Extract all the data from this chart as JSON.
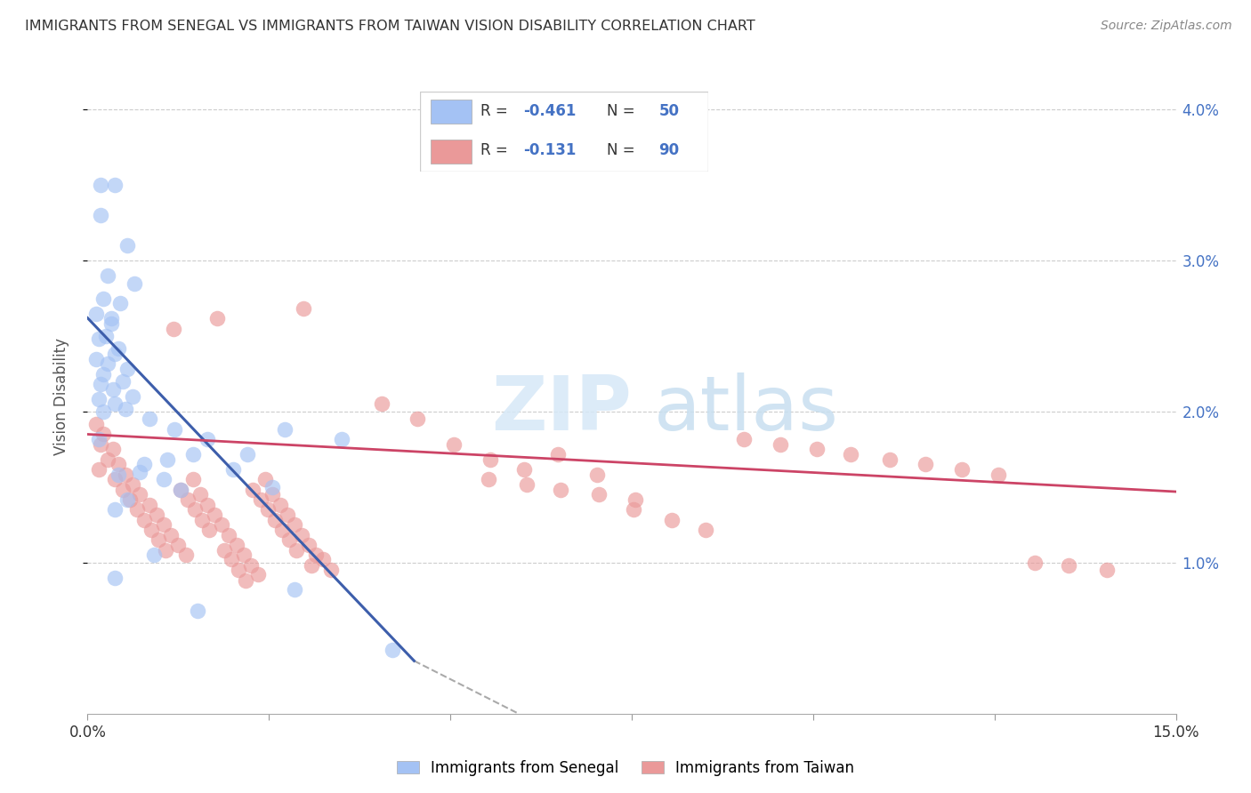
{
  "title": "IMMIGRANTS FROM SENEGAL VS IMMIGRANTS FROM TAIWAN VISION DISABILITY CORRELATION CHART",
  "source": "Source: ZipAtlas.com",
  "ylabel": "Vision Disability",
  "xlim": [
    0.0,
    15.0
  ],
  "ylim": [
    0.0,
    4.2
  ],
  "yticks_right": [
    1.0,
    2.0,
    3.0,
    4.0
  ],
  "ytick_labels_right": [
    "1.0%",
    "2.0%",
    "3.0%",
    "4.0%"
  ],
  "senegal_color": "#a4c2f4",
  "taiwan_color": "#ea9999",
  "senegal_line_color": "#3d5eab",
  "taiwan_line_color": "#cc4466",
  "senegal_R": -0.461,
  "senegal_N": 50,
  "taiwan_R": -0.131,
  "taiwan_N": 90,
  "legend_label_senegal": "Immigrants from Senegal",
  "legend_label_taiwan": "Immigrants from Taiwan",
  "legend_color": "#4472c4",
  "senegal_trend": [
    0.0,
    2.62,
    4.5,
    0.35
  ],
  "taiwan_trend": [
    0.0,
    1.85,
    15.0,
    1.47
  ],
  "dash_ext": [
    4.5,
    0.35,
    8.0,
    -0.5
  ],
  "senegal_points": [
    [
      0.18,
      3.5
    ],
    [
      0.38,
      3.5
    ],
    [
      0.18,
      3.3
    ],
    [
      0.55,
      3.1
    ],
    [
      0.28,
      2.9
    ],
    [
      0.65,
      2.85
    ],
    [
      0.22,
      2.75
    ],
    [
      0.45,
      2.72
    ],
    [
      0.12,
      2.65
    ],
    [
      0.32,
      2.58
    ],
    [
      0.25,
      2.5
    ],
    [
      0.15,
      2.48
    ],
    [
      0.42,
      2.42
    ],
    [
      0.38,
      2.38
    ],
    [
      0.12,
      2.35
    ],
    [
      0.28,
      2.32
    ],
    [
      0.55,
      2.28
    ],
    [
      0.22,
      2.25
    ],
    [
      0.48,
      2.2
    ],
    [
      0.18,
      2.18
    ],
    [
      0.35,
      2.15
    ],
    [
      0.62,
      2.1
    ],
    [
      0.15,
      2.08
    ],
    [
      0.38,
      2.05
    ],
    [
      0.52,
      2.02
    ],
    [
      0.22,
      2.0
    ],
    [
      0.85,
      1.95
    ],
    [
      1.2,
      1.88
    ],
    [
      0.15,
      1.82
    ],
    [
      1.45,
      1.72
    ],
    [
      2.0,
      1.62
    ],
    [
      2.55,
      1.5
    ],
    [
      0.32,
      2.62
    ],
    [
      0.78,
      1.65
    ],
    [
      1.05,
      1.55
    ],
    [
      1.28,
      1.48
    ],
    [
      0.55,
      1.42
    ],
    [
      0.38,
      1.35
    ],
    [
      0.92,
      1.05
    ],
    [
      0.38,
      0.9
    ],
    [
      1.65,
      1.82
    ],
    [
      2.2,
      1.72
    ],
    [
      1.1,
      1.68
    ],
    [
      0.72,
      1.6
    ],
    [
      2.85,
      0.82
    ],
    [
      3.5,
      1.82
    ],
    [
      1.52,
      0.68
    ],
    [
      2.72,
      1.88
    ],
    [
      0.42,
      1.58
    ],
    [
      4.2,
      0.42
    ]
  ],
  "taiwan_points": [
    [
      0.12,
      1.92
    ],
    [
      0.22,
      1.85
    ],
    [
      0.18,
      1.78
    ],
    [
      0.35,
      1.75
    ],
    [
      0.28,
      1.68
    ],
    [
      0.42,
      1.65
    ],
    [
      0.15,
      1.62
    ],
    [
      0.52,
      1.58
    ],
    [
      0.38,
      1.55
    ],
    [
      0.62,
      1.52
    ],
    [
      0.48,
      1.48
    ],
    [
      0.72,
      1.45
    ],
    [
      0.58,
      1.42
    ],
    [
      0.85,
      1.38
    ],
    [
      0.68,
      1.35
    ],
    [
      0.95,
      1.32
    ],
    [
      0.78,
      1.28
    ],
    [
      1.05,
      1.25
    ],
    [
      0.88,
      1.22
    ],
    [
      1.15,
      1.18
    ],
    [
      0.98,
      1.15
    ],
    [
      1.25,
      1.12
    ],
    [
      1.08,
      1.08
    ],
    [
      1.35,
      1.05
    ],
    [
      1.18,
      2.55
    ],
    [
      1.45,
      1.55
    ],
    [
      1.28,
      1.48
    ],
    [
      1.55,
      1.45
    ],
    [
      1.38,
      1.42
    ],
    [
      1.65,
      1.38
    ],
    [
      1.48,
      1.35
    ],
    [
      1.75,
      1.32
    ],
    [
      1.58,
      1.28
    ],
    [
      1.85,
      1.25
    ],
    [
      1.68,
      1.22
    ],
    [
      1.95,
      1.18
    ],
    [
      1.78,
      2.62
    ],
    [
      2.05,
      1.12
    ],
    [
      1.88,
      1.08
    ],
    [
      2.15,
      1.05
    ],
    [
      1.98,
      1.02
    ],
    [
      2.25,
      0.98
    ],
    [
      2.08,
      0.95
    ],
    [
      2.35,
      0.92
    ],
    [
      2.18,
      0.88
    ],
    [
      2.45,
      1.55
    ],
    [
      2.28,
      1.48
    ],
    [
      2.55,
      1.45
    ],
    [
      2.38,
      1.42
    ],
    [
      2.65,
      1.38
    ],
    [
      2.48,
      1.35
    ],
    [
      2.75,
      1.32
    ],
    [
      2.58,
      1.28
    ],
    [
      2.85,
      1.25
    ],
    [
      2.68,
      1.22
    ],
    [
      2.95,
      1.18
    ],
    [
      2.78,
      1.15
    ],
    [
      3.05,
      1.12
    ],
    [
      2.88,
      1.08
    ],
    [
      3.15,
      1.05
    ],
    [
      2.98,
      2.68
    ],
    [
      3.25,
      1.02
    ],
    [
      3.08,
      0.98
    ],
    [
      3.35,
      0.95
    ],
    [
      4.05,
      2.05
    ],
    [
      4.55,
      1.95
    ],
    [
      5.05,
      1.78
    ],
    [
      5.55,
      1.68
    ],
    [
      5.52,
      1.55
    ],
    [
      6.05,
      1.52
    ],
    [
      6.02,
      1.62
    ],
    [
      6.52,
      1.48
    ],
    [
      6.48,
      1.72
    ],
    [
      7.05,
      1.45
    ],
    [
      7.02,
      1.58
    ],
    [
      7.55,
      1.42
    ],
    [
      7.52,
      1.35
    ],
    [
      8.05,
      1.28
    ],
    [
      8.52,
      1.22
    ],
    [
      9.05,
      1.82
    ],
    [
      9.55,
      1.78
    ],
    [
      10.05,
      1.75
    ],
    [
      10.52,
      1.72
    ],
    [
      11.05,
      1.68
    ],
    [
      11.55,
      1.65
    ],
    [
      12.05,
      1.62
    ],
    [
      12.55,
      1.58
    ],
    [
      13.05,
      1.0
    ],
    [
      13.52,
      0.98
    ],
    [
      14.05,
      0.95
    ]
  ]
}
